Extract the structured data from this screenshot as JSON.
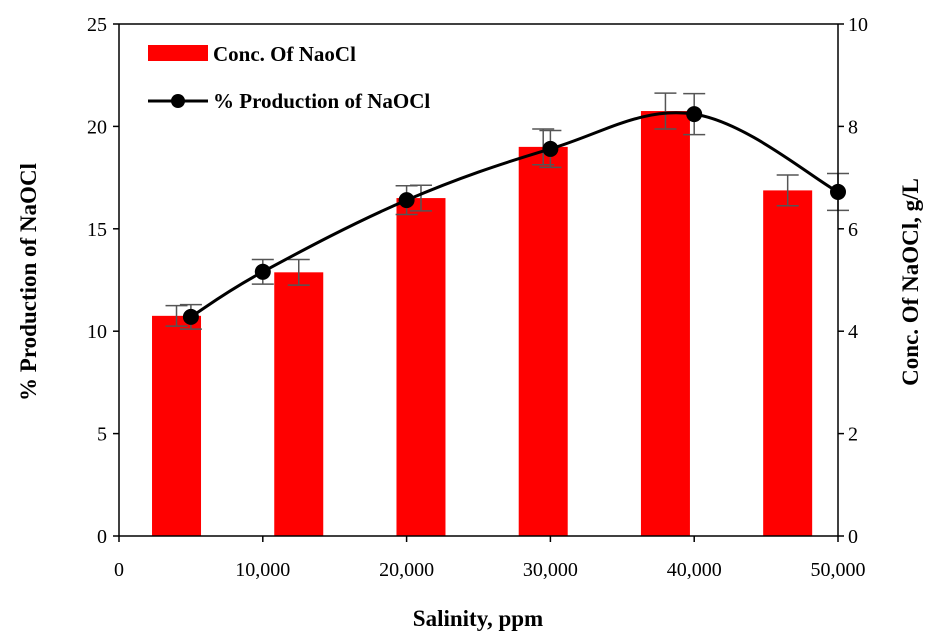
{
  "chart_data": {
    "type": "bar+line",
    "title": "",
    "xlabel": "Salinity, ppm",
    "ylabel_left": "% Production of NaOCl",
    "ylabel_right": "Conc. Of NaOCl, g/L",
    "xlim": [
      0,
      50000
    ],
    "ylim_left": [
      0,
      25
    ],
    "ylim_right": [
      0,
      10
    ],
    "x_ticks": [
      0,
      10000,
      20000,
      30000,
      40000,
      50000
    ],
    "x_tick_labels": [
      "0",
      "10,000",
      "20,000",
      "30,000",
      "40,000",
      "50,000"
    ],
    "y_left_ticks": [
      0,
      5,
      10,
      15,
      20,
      25
    ],
    "y_left_tick_labels": [
      "0",
      "5",
      "10",
      "15",
      "20",
      "25"
    ],
    "y_right_ticks": [
      0,
      2,
      4,
      6,
      8,
      10
    ],
    "y_right_tick_labels": [
      "0",
      "2",
      "4",
      "6",
      "8",
      "10"
    ],
    "grid": false,
    "legend_position": "top-left",
    "series": [
      {
        "name": "Conc. Of NaoCl",
        "type": "bar",
        "axis": "right",
        "color": "#ff0000",
        "x": [
          4000,
          12500,
          21000,
          29500,
          38000,
          46500
        ],
        "values": [
          4.3,
          5.15,
          6.6,
          7.6,
          8.3,
          6.75
        ],
        "error": [
          0.2,
          0.25,
          0.25,
          0.35,
          0.35,
          0.3
        ]
      },
      {
        "name": "% Production of NaOCl",
        "type": "line",
        "axis": "left",
        "color": "#000000",
        "x": [
          5000,
          10000,
          20000,
          30000,
          40000,
          50000
        ],
        "values": [
          10.7,
          12.9,
          16.4,
          18.9,
          20.6,
          16.8
        ],
        "error": [
          0.6,
          0.6,
          0.7,
          0.9,
          1.0,
          0.9
        ]
      }
    ]
  }
}
